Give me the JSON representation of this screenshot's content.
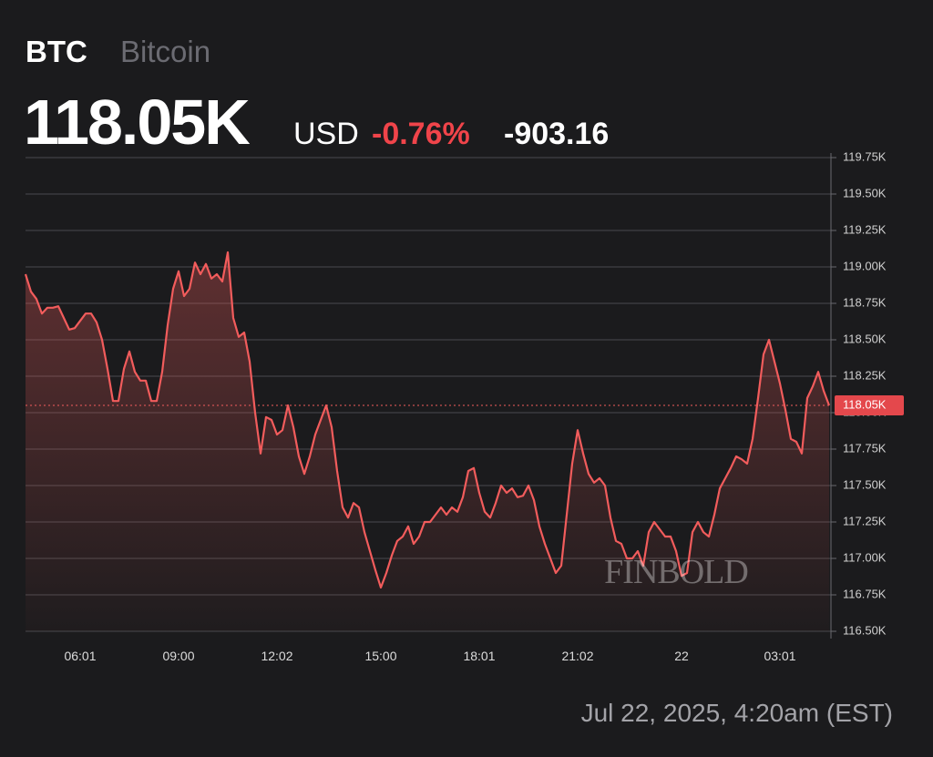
{
  "header": {
    "symbol": "BTC",
    "name": "Bitcoin",
    "currency": "USD",
    "change_percent": "-0.76%",
    "change": "-903.16"
  },
  "footer": {
    "timestamp": "Jul 22, 2025, 4:20am (EST)"
  },
  "watermark": "FINBOLD",
  "chart_data": {
    "type": "line",
    "color": "#f25c5c",
    "grid": true,
    "current": {
      "value": 118.05,
      "label": "118.05K"
    },
    "ylim": [
      116.5,
      119.75
    ],
    "yticks": [
      {
        "value": 116.5,
        "label": "116.50K"
      },
      {
        "value": 116.75,
        "label": "116.75K"
      },
      {
        "value": 117.0,
        "label": "117.00K"
      },
      {
        "value": 117.25,
        "label": "117.25K"
      },
      {
        "value": 117.5,
        "label": "117.50K"
      },
      {
        "value": 117.75,
        "label": "117.75K"
      },
      {
        "value": 118.0,
        "label": "118.00K"
      },
      {
        "value": 118.25,
        "label": "118.25K"
      },
      {
        "value": 118.5,
        "label": "118.50K"
      },
      {
        "value": 118.75,
        "label": "118.75K"
      },
      {
        "value": 119.0,
        "label": "119.00K"
      },
      {
        "value": 119.25,
        "label": "119.25K"
      },
      {
        "value": 119.5,
        "label": "119.50K"
      },
      {
        "value": 119.75,
        "label": "119.75K"
      }
    ],
    "categories": [
      null,
      null,
      null,
      null,
      null,
      null,
      null,
      null,
      null,
      null,
      "06:01",
      null,
      null,
      null,
      null,
      null,
      null,
      null,
      null,
      null,
      null,
      null,
      null,
      null,
      null,
      null,
      null,
      null,
      "09:00",
      null,
      null,
      null,
      null,
      null,
      null,
      null,
      null,
      null,
      null,
      null,
      null,
      null,
      null,
      null,
      null,
      null,
      "12:02",
      null,
      null,
      null,
      null,
      null,
      null,
      null,
      null,
      null,
      null,
      null,
      null,
      null,
      null,
      null,
      null,
      null,
      null,
      "15:00",
      null,
      null,
      null,
      null,
      null,
      null,
      null,
      null,
      null,
      null,
      null,
      null,
      null,
      null,
      null,
      null,
      null,
      "18:01",
      null,
      null,
      null,
      null,
      null,
      null,
      null,
      null,
      null,
      null,
      null,
      null,
      null,
      null,
      null,
      null,
      null,
      "21:02",
      null,
      null,
      null,
      null,
      null,
      null,
      null,
      null,
      null,
      null,
      null,
      null,
      null,
      null,
      null,
      null,
      null,
      null,
      "22",
      null,
      null,
      null,
      null,
      null,
      null,
      null,
      null,
      null,
      null,
      null,
      null,
      null,
      null,
      null,
      null,
      null,
      "03:01",
      null,
      null,
      null,
      null,
      null,
      null,
      null,
      null,
      null
    ],
    "values": [
      118.95,
      118.83,
      118.78,
      118.68,
      118.72,
      118.72,
      118.73,
      118.65,
      118.57,
      118.58,
      118.63,
      118.68,
      118.68,
      118.62,
      118.5,
      118.3,
      118.08,
      118.08,
      118.3,
      118.42,
      118.28,
      118.22,
      118.22,
      118.08,
      118.08,
      118.28,
      118.6,
      118.85,
      118.97,
      118.8,
      118.85,
      119.03,
      118.95,
      119.02,
      118.92,
      118.95,
      118.9,
      119.1,
      118.65,
      118.52,
      118.55,
      118.35,
      118.0,
      117.72,
      117.97,
      117.95,
      117.85,
      117.88,
      118.05,
      117.9,
      117.7,
      117.58,
      117.7,
      117.85,
      117.95,
      118.05,
      117.9,
      117.6,
      117.35,
      117.28,
      117.38,
      117.35,
      117.18,
      117.05,
      116.92,
      116.8,
      116.9,
      117.02,
      117.12,
      117.15,
      117.22,
      117.1,
      117.15,
      117.25,
      117.25,
      117.3,
      117.35,
      117.3,
      117.35,
      117.32,
      117.42,
      117.6,
      117.62,
      117.45,
      117.32,
      117.28,
      117.38,
      117.5,
      117.45,
      117.48,
      117.42,
      117.43,
      117.5,
      117.4,
      117.22,
      117.1,
      117.0,
      116.9,
      116.95,
      117.3,
      117.65,
      117.88,
      117.72,
      117.58,
      117.52,
      117.55,
      117.5,
      117.28,
      117.12,
      117.1,
      117.0,
      117.0,
      117.05,
      116.95,
      117.18,
      117.25,
      117.2,
      117.15,
      117.15,
      117.05,
      116.88,
      116.9,
      117.18,
      117.25,
      117.18,
      117.15,
      117.3,
      117.48,
      117.55,
      117.62,
      117.7,
      117.68,
      117.65,
      117.82,
      118.1,
      118.4,
      118.5,
      118.35,
      118.2,
      118.02,
      117.82,
      117.8,
      117.72,
      118.1,
      118.18,
      118.28,
      118.15,
      118.05
    ]
  }
}
